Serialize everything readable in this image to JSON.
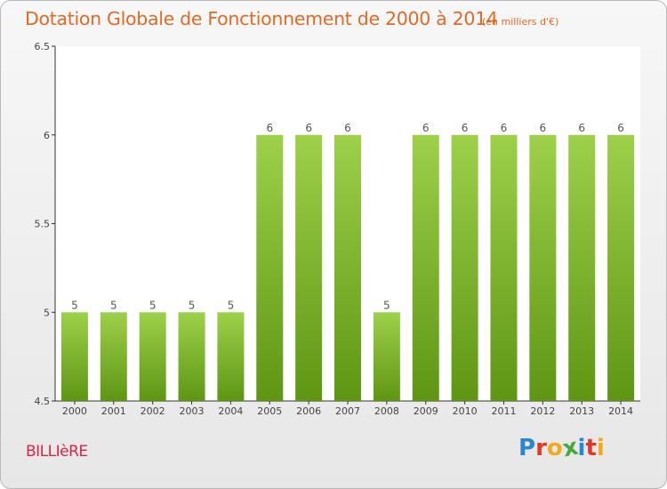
{
  "chart_data": {
    "type": "bar",
    "title": "Dotation Globale de Fonctionnement de 2000 à 2014",
    "subtitle": "(en milliers d'€)",
    "categories": [
      "2000",
      "2001",
      "2002",
      "2003",
      "2004",
      "2005",
      "2006",
      "2007",
      "2008",
      "2009",
      "2010",
      "2011",
      "2012",
      "2013",
      "2014"
    ],
    "values": [
      5,
      5,
      5,
      5,
      5,
      6,
      6,
      6,
      5,
      6,
      6,
      6,
      6,
      6,
      6
    ],
    "data_labels": [
      "5",
      "5",
      "5",
      "5",
      "5",
      "6",
      "6",
      "6",
      "5",
      "6",
      "6",
      "6",
      "6",
      "6",
      "6"
    ],
    "ylim": [
      4.5,
      6.5
    ],
    "yticks": [
      "4.5",
      "5",
      "5.5",
      "6",
      "6.5"
    ],
    "grid": false,
    "bar_color_top": "#9ed04a",
    "bar_color_bottom": "#5e9614"
  },
  "footer": {
    "commune": "BILLIèRE",
    "logo": [
      "P",
      "r",
      "o",
      "x",
      "i",
      "t",
      "i"
    ],
    "logo_colors": [
      "#2a86d1",
      "#e0392a",
      "#f4a81d",
      "#46a83e",
      "#2a86d1",
      "#e0392a",
      "#f4a81d"
    ]
  },
  "colors": {
    "title": "#e06a26",
    "commune": "#d8234a"
  }
}
